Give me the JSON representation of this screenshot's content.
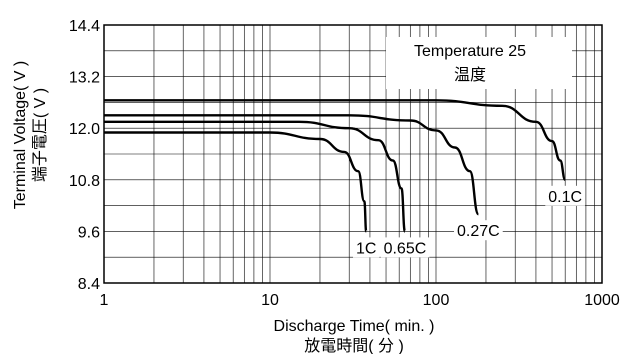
{
  "chart_data": {
    "type": "line",
    "title": "",
    "xlabel": "Discharge Time( min. )",
    "xlabel_cjk": "放電時間( 分 )",
    "ylabel": "Terminal Voltage( V )",
    "ylabel_cjk": "端子電圧( V )",
    "x_scale": "log",
    "xlim": [
      1,
      1000
    ],
    "ylim": [
      8.4,
      14.4
    ],
    "x_ticks": [
      1,
      10,
      100,
      1000
    ],
    "x_tick_labels": [
      "1",
      "10",
      "100",
      "1000"
    ],
    "y_ticks": [
      8.4,
      9.6,
      10.8,
      12.0,
      13.2,
      14.4
    ],
    "y_tick_labels": [
      "8.4",
      "9.6",
      "10.8",
      "12.0",
      "13.2",
      "14.4"
    ],
    "grid": true,
    "annotation": {
      "line1": "Temperature 25",
      "line2": "温度"
    },
    "series": [
      {
        "name": "0.1C",
        "x": [
          1,
          100,
          250,
          400,
          500,
          560,
          600
        ],
        "y": [
          12.65,
          12.65,
          12.52,
          12.15,
          11.7,
          11.25,
          10.8
        ]
      },
      {
        "name": "0.27C",
        "x": [
          1,
          30,
          70,
          100,
          130,
          160,
          180
        ],
        "y": [
          12.3,
          12.3,
          12.18,
          11.95,
          11.55,
          11.0,
          10.0
        ]
      },
      {
        "name": "0.65C",
        "x": [
          1,
          15,
          30,
          45,
          55,
          62,
          65
        ],
        "y": [
          12.15,
          12.15,
          12.0,
          11.72,
          11.25,
          10.6,
          9.6
        ]
      },
      {
        "name": "1C",
        "x": [
          1,
          10,
          20,
          28,
          34,
          37,
          38
        ],
        "y": [
          11.9,
          11.9,
          11.75,
          11.45,
          11.0,
          10.3,
          9.6
        ]
      }
    ]
  }
}
